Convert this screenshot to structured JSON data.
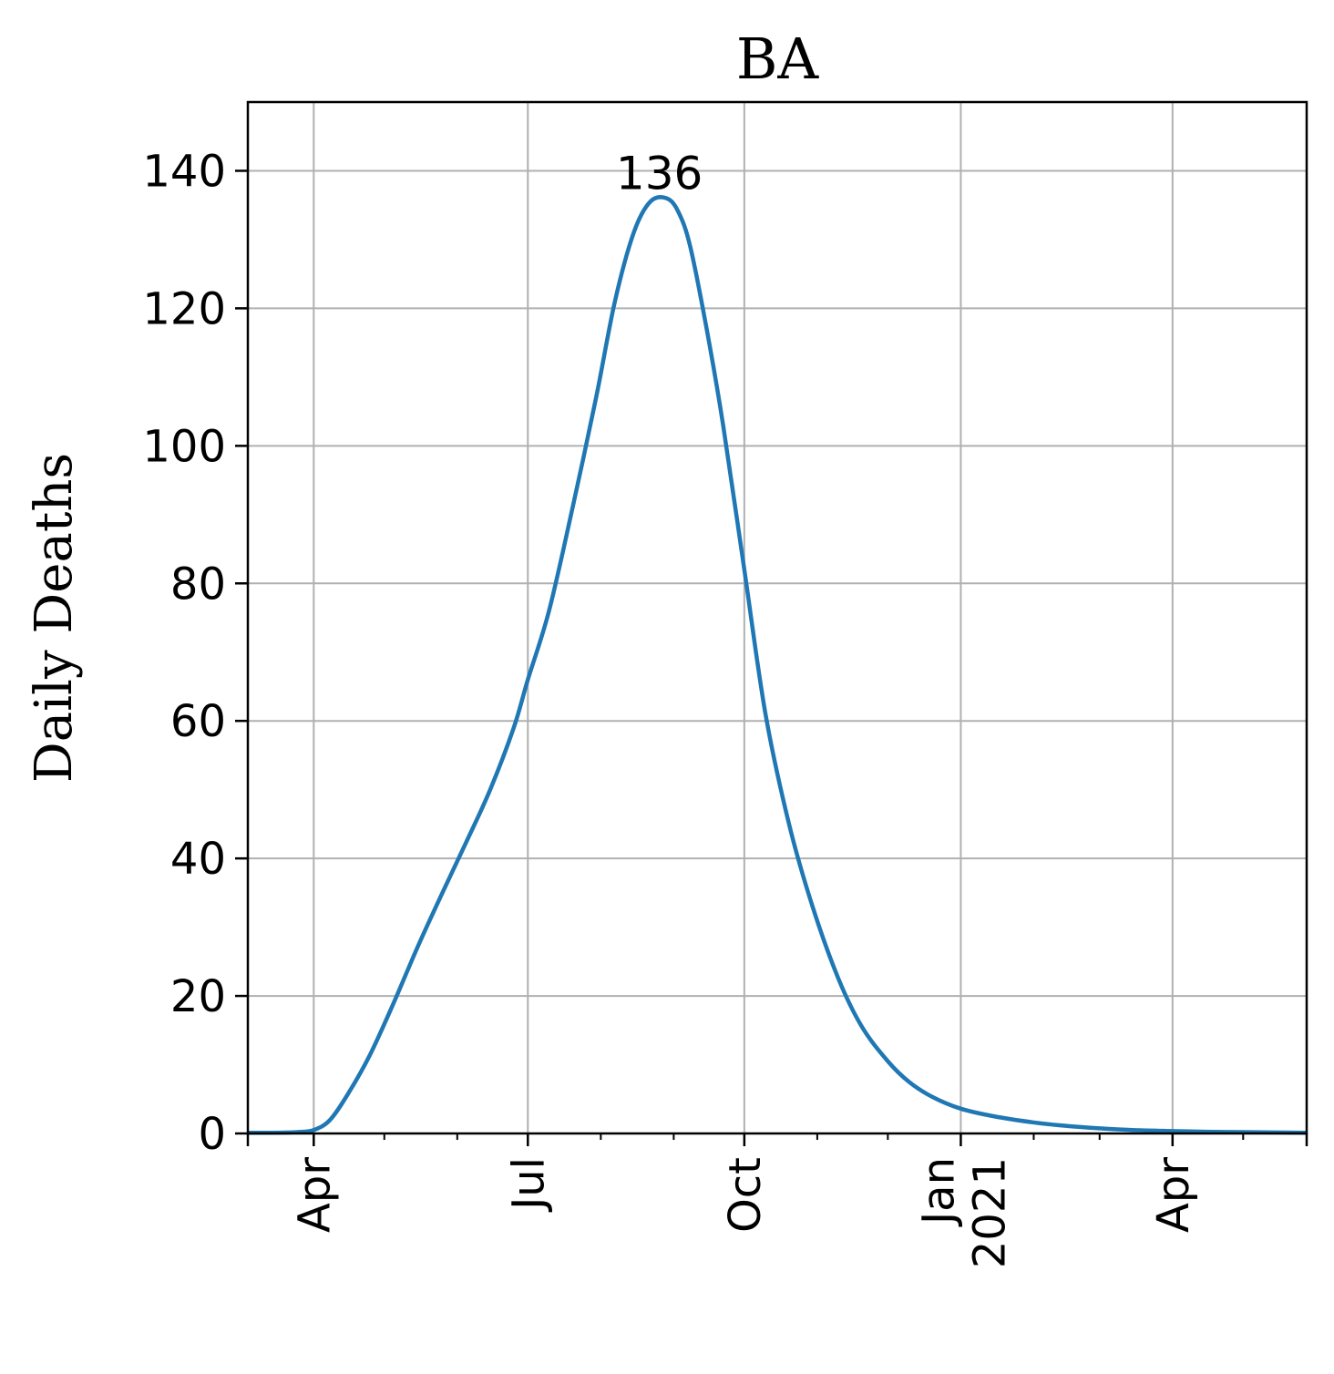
{
  "chart_data": {
    "type": "line",
    "title": "BA",
    "xlabel": "",
    "ylabel": "Daily Deaths",
    "xlim": [
      "2020-03-04",
      "2021-05-28"
    ],
    "ylim": [
      0,
      150
    ],
    "grid": true,
    "yticks": [
      0,
      20,
      40,
      60,
      80,
      100,
      120,
      140
    ],
    "xticks": [
      {
        "date": "2020-04-01",
        "label": "Apr",
        "label2": ""
      },
      {
        "date": "2020-07-01",
        "label": "Jul",
        "label2": ""
      },
      {
        "date": "2020-10-01",
        "label": "Oct",
        "label2": ""
      },
      {
        "date": "2021-01-01",
        "label": "Jan",
        "label2": "2021"
      },
      {
        "date": "2021-04-01",
        "label": "Apr",
        "label2": ""
      }
    ],
    "x_minor_ticks": [
      "2020-05-01",
      "2020-06-01",
      "2020-08-01",
      "2020-09-01",
      "2020-11-01",
      "2020-12-01",
      "2021-02-01",
      "2021-03-01",
      "2021-05-01"
    ],
    "series": [
      {
        "name": "",
        "color": "#1f77b4",
        "x": [
          "2020-03-04",
          "2020-03-15",
          "2020-03-25",
          "2020-04-01",
          "2020-04-08",
          "2020-04-16",
          "2020-04-25",
          "2020-05-05",
          "2020-05-15",
          "2020-05-25",
          "2020-06-05",
          "2020-06-15",
          "2020-06-25",
          "2020-07-01",
          "2020-07-10",
          "2020-07-20",
          "2020-07-30",
          "2020-08-07",
          "2020-08-15",
          "2020-08-22",
          "2020-08-29",
          "2020-09-03",
          "2020-09-08",
          "2020-09-15",
          "2020-09-22",
          "2020-10-01",
          "2020-10-10",
          "2020-10-20",
          "2020-10-30",
          "2020-11-10",
          "2020-11-20",
          "2020-12-01",
          "2020-12-10",
          "2020-12-20",
          "2021-01-01",
          "2021-01-15",
          "2021-02-01",
          "2021-02-15",
          "2021-03-01",
          "2021-03-15",
          "2021-04-01",
          "2021-04-15",
          "2021-05-01",
          "2021-05-15",
          "2021-05-28"
        ],
        "values": [
          0.1,
          0.1,
          0.2,
          0.5,
          2,
          6,
          11.5,
          19,
          27,
          34.5,
          42.5,
          50,
          59,
          66,
          76,
          91,
          107,
          121,
          131,
          135.5,
          136,
          134,
          129,
          117,
          103,
          82,
          61,
          45,
          33,
          22.5,
          15.5,
          10.5,
          7.5,
          5.3,
          3.6,
          2.5,
          1.6,
          1.1,
          0.75,
          0.5,
          0.35,
          0.25,
          0.2,
          0.15,
          0.1
        ]
      }
    ],
    "annotations": [
      {
        "text": "136",
        "x": "2020-08-29",
        "y": 136
      }
    ]
  }
}
